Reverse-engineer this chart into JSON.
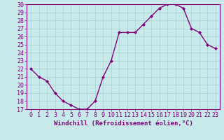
{
  "x": [
    0,
    1,
    2,
    3,
    4,
    5,
    6,
    7,
    8,
    9,
    10,
    11,
    12,
    13,
    14,
    15,
    16,
    17,
    18,
    19,
    20,
    21,
    22,
    23
  ],
  "y": [
    22,
    21,
    20.5,
    19,
    18,
    17.5,
    17,
    17,
    18,
    21,
    23,
    26.5,
    26.5,
    26.5,
    27.5,
    28.5,
    29.5,
    30,
    30,
    29.5,
    27,
    26.5,
    25,
    24.5
  ],
  "line_color": "#800080",
  "marker": "D",
  "marker_size": 2,
  "background_color": "#c8eaea",
  "grid_color": "#b0d8d8",
  "xlabel": "Windchill (Refroidissement éolien,°C)",
  "xlim": [
    -0.5,
    23.5
  ],
  "ylim": [
    17,
    30
  ],
  "yticks": [
    17,
    18,
    19,
    20,
    21,
    22,
    23,
    24,
    25,
    26,
    27,
    28,
    29,
    30
  ],
  "xticks": [
    0,
    1,
    2,
    3,
    4,
    5,
    6,
    7,
    8,
    9,
    10,
    11,
    12,
    13,
    14,
    15,
    16,
    17,
    18,
    19,
    20,
    21,
    22,
    23
  ],
  "xlabel_fontsize": 6.5,
  "tick_fontsize": 6,
  "line_width": 1.0
}
